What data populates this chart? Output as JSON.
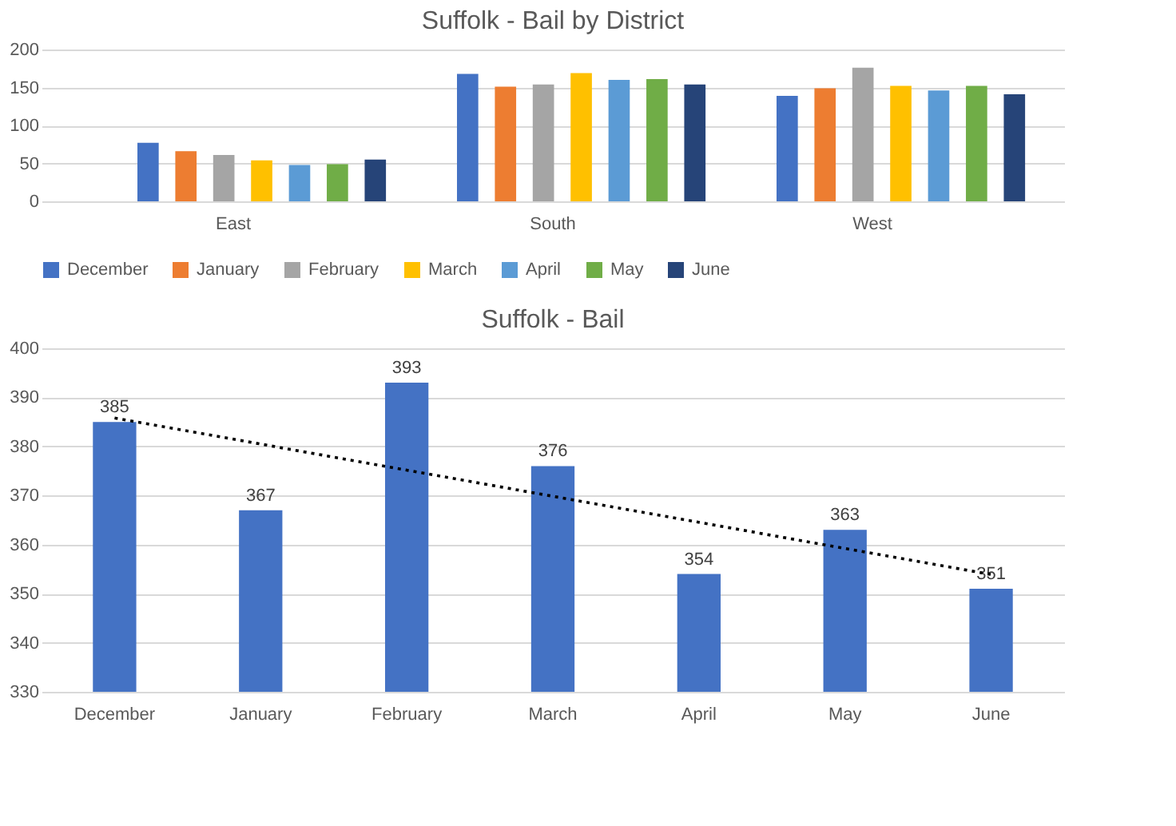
{
  "chart_data": [
    {
      "type": "bar",
      "title": "Suffolk - Bail by District",
      "categories": [
        "East",
        "South",
        "West"
      ],
      "ylim": [
        0,
        200
      ],
      "yticks": [
        0,
        50,
        100,
        150,
        200
      ],
      "grid": "y",
      "legend": "bottom",
      "series": [
        {
          "name": "December",
          "color": "#4472c4",
          "values": [
            77,
            168,
            139
          ]
        },
        {
          "name": "January",
          "color": "#ed7d31",
          "values": [
            66,
            151,
            149
          ]
        },
        {
          "name": "February",
          "color": "#a5a5a5",
          "values": [
            61,
            154,
            176
          ]
        },
        {
          "name": "March",
          "color": "#ffc000",
          "values": [
            54,
            169,
            152
          ]
        },
        {
          "name": "April",
          "color": "#5b9bd5",
          "values": [
            48,
            160,
            146
          ]
        },
        {
          "name": "May",
          "color": "#70ad47",
          "values": [
            49,
            161,
            152
          ]
        },
        {
          "name": "June",
          "color": "#264478",
          "values": [
            55,
            154,
            141
          ]
        }
      ]
    },
    {
      "type": "bar",
      "title": "Suffolk - Bail",
      "categories": [
        "December",
        "January",
        "February",
        "March",
        "April",
        "May",
        "June"
      ],
      "ylim": [
        330,
        400
      ],
      "yticks": [
        330,
        340,
        350,
        360,
        370,
        380,
        390,
        400
      ],
      "grid": "y",
      "series": [
        {
          "color": "#4472c4",
          "values": [
            385,
            367,
            393,
            376,
            354,
            363,
            351
          ],
          "value_labels": [
            "385",
            "367",
            "393",
            "376",
            "354",
            "363",
            "351"
          ]
        },
        {
          "type": "line",
          "color": "#000000",
          "line_style": "dotted",
          "x": [
            "December",
            "June"
          ],
          "values": [
            385.8,
            353.9
          ]
        }
      ]
    }
  ]
}
